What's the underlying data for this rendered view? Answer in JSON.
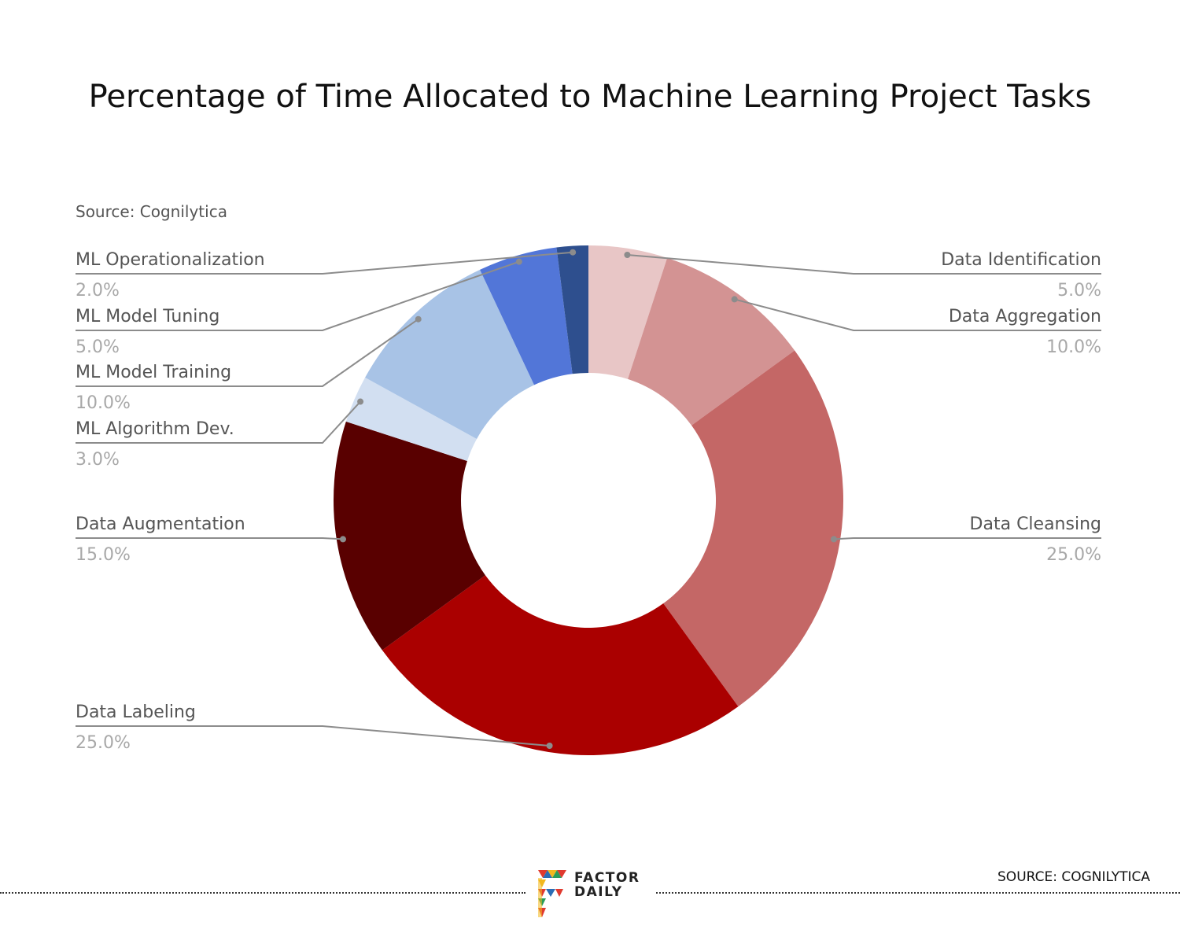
{
  "header": {
    "title": "Percentage of Time Allocated to Machine Learning Project Tasks",
    "source_note": "Source: Cognilytica"
  },
  "chart_data": {
    "type": "pie",
    "donut": true,
    "title": "Percentage of Time Allocated to Machine Learning Project Tasks",
    "slices": [
      {
        "label": "Data Identification",
        "value": 5.0,
        "display": "5.0%",
        "color": "#e8c6c6",
        "side": "right"
      },
      {
        "label": "Data Aggregation",
        "value": 10.0,
        "display": "10.0%",
        "color": "#d39393",
        "side": "right"
      },
      {
        "label": "Data Cleansing",
        "value": 25.0,
        "display": "25.0%",
        "color": "#c46766",
        "side": "right"
      },
      {
        "label": "Data Labeling",
        "value": 25.0,
        "display": "25.0%",
        "color": "#aa0000",
        "side": "left"
      },
      {
        "label": "Data Augmentation",
        "value": 15.0,
        "display": "15.0%",
        "color": "#590000",
        "side": "left"
      },
      {
        "label": "ML Algorithm Dev.",
        "value": 3.0,
        "display": "3.0%",
        "color": "#d2dff1",
        "side": "left"
      },
      {
        "label": "ML Model Training",
        "value": 10.0,
        "display": "10.0%",
        "color": "#a8c3e6",
        "side": "left"
      },
      {
        "label": "ML Model Tuning",
        "value": 5.0,
        "display": "5.0%",
        "color": "#5276d8",
        "side": "left"
      },
      {
        "label": "ML Operationalization",
        "value": 2.0,
        "display": "2.0%",
        "color": "#2e4f8e",
        "side": "left"
      }
    ]
  },
  "footer": {
    "brand_line1": "FACTOR",
    "brand_line2": "DAILY",
    "source": "SOURCE: COGNILYTICA"
  }
}
